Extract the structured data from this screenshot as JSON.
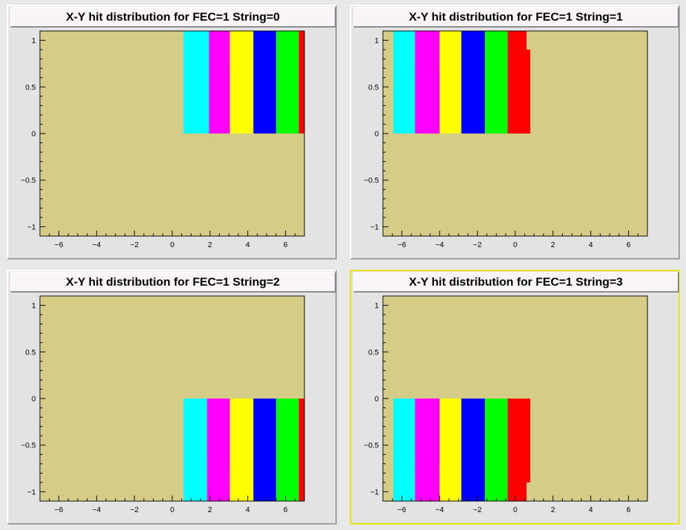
{
  "canvas": {
    "background": "#e8e8e8",
    "selected_pad_color": "#e6e600"
  },
  "colors": {
    "frame_fill": "#d5cc88",
    "axis": "#000000",
    "bands": [
      "#00ffff",
      "#ff00ff",
      "#ffff00",
      "#0000ff",
      "#00ff00",
      "#ff0000"
    ]
  },
  "chart_data": [
    {
      "type": "heatmap",
      "title": "X-Y hit distribution for FEC=1 String=0",
      "xlim": [
        -7,
        7
      ],
      "ylim": [
        -1.1,
        1.1
      ],
      "x_ticks": [
        -6,
        -4,
        -2,
        0,
        2,
        4,
        6
      ],
      "y_ticks": [
        -1,
        -0.5,
        0,
        0.5,
        1
      ],
      "x_tick_labels": [
        "−6",
        "−4",
        "−2",
        "0",
        "2",
        "4",
        "6"
      ],
      "y_tick_labels": [
        "−1",
        "−0.5",
        "0",
        "0.5",
        "1"
      ],
      "grid": false,
      "legend": "none",
      "selected": false,
      "bands": [
        {
          "color": "#00ffff",
          "x_start": 0.6,
          "y_min": 0,
          "y_max": 1.1,
          "segments": [
            [
              1.1,
              0.68,
              1.95
            ],
            [
              0.68,
              0,
              2.05
            ]
          ]
        },
        {
          "color": "#ff00ff",
          "x_start": 1.95,
          "y_min": 0,
          "y_max": 1.1,
          "segments": [
            [
              1.1,
              0.68,
              3.05
            ],
            [
              0.68,
              0.3,
              3.15
            ],
            [
              0.3,
              0,
              3.25
            ]
          ]
        },
        {
          "color": "#ffff00",
          "x_start": 3.05,
          "y_min": 0,
          "y_max": 1.1,
          "segments": [
            [
              1.1,
              0,
              4.3
            ]
          ]
        },
        {
          "color": "#0000ff",
          "x_start": 4.3,
          "y_min": 0,
          "y_max": 1.1,
          "segments": [
            [
              1.1,
              0,
              5.5
            ]
          ]
        },
        {
          "color": "#00ff00",
          "x_start": 5.5,
          "y_min": 0,
          "y_max": 1.1,
          "segments": [
            [
              1.1,
              0,
              6.7
            ]
          ]
        },
        {
          "color": "#ff0000",
          "x_start": 6.7,
          "y_min": 0,
          "y_max": 1.1,
          "segments": [
            [
              1.1,
              0,
              7.0
            ]
          ]
        }
      ]
    },
    {
      "type": "heatmap",
      "title": "X-Y hit distribution for FEC=1 String=1",
      "xlim": [
        -7,
        7
      ],
      "ylim": [
        -1.1,
        1.1
      ],
      "x_ticks": [
        -6,
        -4,
        -2,
        0,
        2,
        4,
        6
      ],
      "y_ticks": [
        -1,
        -0.5,
        0,
        0.5,
        1
      ],
      "x_tick_labels": [
        "−6",
        "−4",
        "−2",
        "0",
        "2",
        "4",
        "6"
      ],
      "y_tick_labels": [
        "−1",
        "−0.5",
        "0",
        "0.5",
        "1"
      ],
      "grid": false,
      "legend": "none",
      "selected": false,
      "bands": [
        {
          "color": "#00ffff",
          "x_start": -6.45,
          "y_min": 0,
          "y_max": 1.1,
          "segments": [
            [
              1.1,
              0.7,
              -5.3
            ],
            [
              0.7,
              0,
              -5.15
            ]
          ]
        },
        {
          "color": "#ff00ff",
          "x_start": -5.3,
          "y_min": 0,
          "y_max": 1.1,
          "segments": [
            [
              1.1,
              0.68,
              -4.0
            ],
            [
              0.68,
              0.28,
              -3.9
            ],
            [
              0.28,
              0,
              -3.85
            ]
          ]
        },
        {
          "color": "#ffff00",
          "x_start": -4.0,
          "y_min": 0,
          "y_max": 1.1,
          "segments": [
            [
              1.1,
              0,
              -2.85
            ]
          ]
        },
        {
          "color": "#0000ff",
          "x_start": -2.85,
          "y_min": 0,
          "y_max": 1.1,
          "segments": [
            [
              1.1,
              0,
              -1.6
            ]
          ]
        },
        {
          "color": "#00ff00",
          "x_start": -1.6,
          "y_min": 0,
          "y_max": 1.1,
          "segments": [
            [
              1.1,
              0,
              -0.4
            ]
          ]
        },
        {
          "color": "#ff0000",
          "x_start": -0.4,
          "y_min": 0,
          "y_max": 1.1,
          "segments": [
            [
              1.1,
              0.9,
              0.6
            ],
            [
              0.9,
              0,
              0.8
            ]
          ]
        }
      ]
    },
    {
      "type": "heatmap",
      "title": "X-Y hit distribution for FEC=1 String=2",
      "xlim": [
        -7,
        7
      ],
      "ylim": [
        -1.1,
        1.1
      ],
      "x_ticks": [
        -6,
        -4,
        -2,
        0,
        2,
        4,
        6
      ],
      "y_ticks": [
        -1,
        -0.5,
        0,
        0.5,
        1
      ],
      "x_tick_labels": [
        "−6",
        "−4",
        "−2",
        "0",
        "2",
        "4",
        "6"
      ],
      "y_tick_labels": [
        "−1",
        "−0.5",
        "0",
        "0.5",
        "1"
      ],
      "grid": false,
      "legend": "none",
      "selected": false,
      "bands": [
        {
          "color": "#00ffff",
          "x_start": 0.6,
          "y_min": -1.1,
          "y_max": 0,
          "segments": [
            [
              0,
              -0.72,
              2.0
            ],
            [
              -0.72,
              -1.1,
              1.85
            ]
          ]
        },
        {
          "color": "#ff00ff",
          "x_start": 1.85,
          "y_min": -1.1,
          "y_max": 0,
          "segments": [
            [
              0,
              -0.3,
              3.25
            ],
            [
              -0.3,
              -0.7,
              3.1
            ],
            [
              -0.7,
              -1.1,
              3.05
            ]
          ]
        },
        {
          "color": "#ffff00",
          "x_start": 3.05,
          "y_min": -1.1,
          "y_max": 0,
          "segments": [
            [
              0,
              -1.1,
              4.3
            ]
          ]
        },
        {
          "color": "#0000ff",
          "x_start": 4.3,
          "y_min": -1.1,
          "y_max": 0,
          "segments": [
            [
              0,
              -1.1,
              5.5
            ]
          ]
        },
        {
          "color": "#00ff00",
          "x_start": 5.5,
          "y_min": -1.1,
          "y_max": 0,
          "segments": [
            [
              0,
              -1.1,
              6.7
            ]
          ]
        },
        {
          "color": "#ff0000",
          "x_start": 6.7,
          "y_min": -1.1,
          "y_max": 0,
          "segments": [
            [
              0,
              -1.1,
              7.0
            ]
          ]
        }
      ]
    },
    {
      "type": "heatmap",
      "title": "X-Y hit distribution for FEC=1 String=3",
      "xlim": [
        -7,
        7
      ],
      "ylim": [
        -1.1,
        1.1
      ],
      "x_ticks": [
        -6,
        -4,
        -2,
        0,
        2,
        4,
        6
      ],
      "y_ticks": [
        -1,
        -0.5,
        0,
        0.5,
        1
      ],
      "x_tick_labels": [
        "−6",
        "−4",
        "−2",
        "0",
        "2",
        "4",
        "6"
      ],
      "y_tick_labels": [
        "−1",
        "−0.5",
        "0",
        "0.5",
        "1"
      ],
      "grid": false,
      "legend": "none",
      "selected": true,
      "bands": [
        {
          "color": "#00ffff",
          "x_start": -6.45,
          "y_min": -1.1,
          "y_max": 0,
          "segments": [
            [
              0,
              -0.72,
              -5.15
            ],
            [
              -0.72,
              -1.1,
              -5.3
            ]
          ]
        },
        {
          "color": "#ff00ff",
          "x_start": -5.3,
          "y_min": -1.1,
          "y_max": 0,
          "segments": [
            [
              0,
              -0.28,
              -3.85
            ],
            [
              -0.28,
              -0.7,
              -3.95
            ],
            [
              -0.7,
              -1.1,
              -4.0
            ]
          ]
        },
        {
          "color": "#ffff00",
          "x_start": -4.0,
          "y_min": -1.1,
          "y_max": 0,
          "segments": [
            [
              0,
              -1.1,
              -2.85
            ]
          ]
        },
        {
          "color": "#0000ff",
          "x_start": -2.85,
          "y_min": -1.1,
          "y_max": 0,
          "segments": [
            [
              0,
              -1.1,
              -1.6
            ]
          ]
        },
        {
          "color": "#00ff00",
          "x_start": -1.6,
          "y_min": -1.1,
          "y_max": 0,
          "segments": [
            [
              0,
              -1.1,
              -0.4
            ]
          ]
        },
        {
          "color": "#ff0000",
          "x_start": -0.4,
          "y_min": -1.1,
          "y_max": 0,
          "segments": [
            [
              0,
              -0.9,
              0.8
            ],
            [
              -0.9,
              -1.1,
              0.6
            ]
          ]
        }
      ]
    }
  ]
}
